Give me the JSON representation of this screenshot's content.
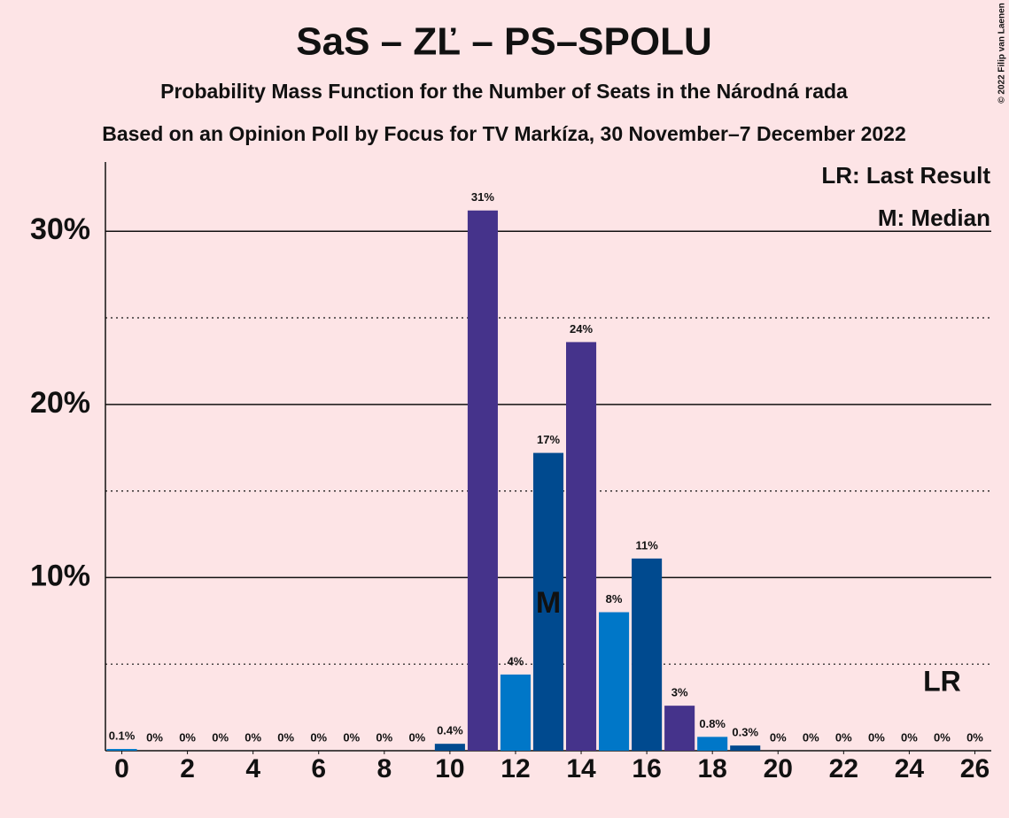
{
  "chart_data": {
    "type": "bar",
    "title": "SaS – ZĽ – PS–SPOLU",
    "subtitle": "Probability Mass Function for the Number of Seats in the Národná rada",
    "subtitle2": "Based on an Opinion Poll by Focus for TV Markíza, 30 November–7 December 2022",
    "credit": "© 2022 Filip van Laenen",
    "legend": [
      "LR: Last Result",
      "M: Median"
    ],
    "x": [
      0,
      1,
      2,
      3,
      4,
      5,
      6,
      7,
      8,
      9,
      10,
      11,
      12,
      13,
      14,
      15,
      16,
      17,
      18,
      19,
      20,
      21,
      22,
      23,
      24,
      25,
      26
    ],
    "values": [
      0.1,
      0,
      0,
      0,
      0,
      0,
      0,
      0,
      0,
      0,
      0.4,
      31.2,
      4.4,
      17.2,
      23.6,
      8.0,
      11.1,
      2.6,
      0.8,
      0.3,
      0,
      0,
      0,
      0,
      0,
      0,
      0
    ],
    "value_labels": [
      "0.1%",
      "0%",
      "0%",
      "0%",
      "0%",
      "0%",
      "0%",
      "0%",
      "0%",
      "0%",
      "0.4%",
      "31%",
      "4%",
      "17%",
      "24%",
      "8%",
      "11%",
      "3%",
      "0.8%",
      "0.3%",
      "0%",
      "0%",
      "0%",
      "0%",
      "0%",
      "0%",
      "0%"
    ],
    "colors": [
      "#0077c8",
      "#0077c8",
      "#0077c8",
      "#0077c8",
      "#0077c8",
      "#0077c8",
      "#0077c8",
      "#0077c8",
      "#0077c8",
      "#0077c8",
      "#004a8f",
      "#45338b",
      "#0077c8",
      "#004a8f",
      "#45338b",
      "#0077c8",
      "#004a8f",
      "#45338b",
      "#0077c8",
      "#004a8f",
      "#0077c8",
      "#0077c8",
      "#0077c8",
      "#0077c8",
      "#0077c8",
      "#0077c8",
      "#0077c8"
    ],
    "xlim": [
      -0.5,
      26.5
    ],
    "xticks": [
      0,
      2,
      4,
      6,
      8,
      10,
      12,
      14,
      16,
      18,
      20,
      22,
      24,
      26
    ],
    "ylim": [
      0,
      34
    ],
    "yticks": [
      {
        "value": 10,
        "label": "10%"
      },
      {
        "value": 20,
        "label": "20%"
      },
      {
        "value": 30,
        "label": "30%"
      }
    ],
    "yminor": [
      5,
      15,
      25
    ],
    "grid": true,
    "annotations": [
      {
        "text": "M",
        "x": 13
      },
      {
        "text": "LR",
        "x": 25
      }
    ]
  }
}
